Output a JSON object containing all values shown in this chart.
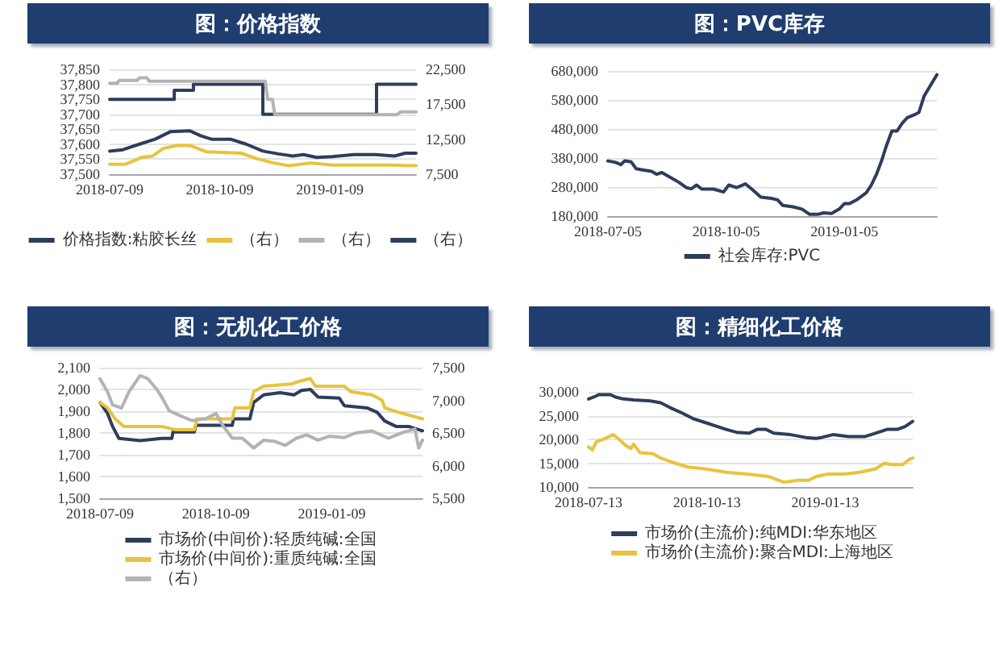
{
  "chart_data": [
    {
      "type": "line",
      "title": "图：价格指数",
      "series": [
        {
          "name": "价格指数:粘胶长丝",
          "type": "step",
          "color": "#2e3d5c",
          "x": [
            "2018-07-09",
            "2018-09-01",
            "2018-09-17",
            "2018-11-14",
            "2019-02-17",
            "2019-03-22"
          ],
          "values": [
            37750,
            37780,
            37800,
            37700,
            37800,
            37800
          ]
        },
        {
          "name": "（右）",
          "color": "#e8c33d",
          "axis": "y2",
          "x": [
            "2018-07-09",
            "2018-07-22",
            "2018-08-05",
            "2018-08-14",
            "2018-08-23",
            "2018-09-03",
            "2018-09-14",
            "2018-09-28",
            "2018-10-14",
            "2018-10-27",
            "2018-11-09",
            "2018-11-23",
            "2018-12-06",
            "2018-12-24",
            "2019-01-11",
            "2019-02-07",
            "2019-03-02",
            "2019-03-22"
          ],
          "values": [
            8900,
            8900,
            9900,
            10100,
            11200,
            11600,
            11600,
            10700,
            10600,
            10500,
            9700,
            9100,
            8700,
            9100,
            8800,
            8800,
            8800,
            8700
          ]
        },
        {
          "name": "（右）",
          "color": "#b3b3b3",
          "axis": "y2",
          "x": [
            "2018-07-09",
            "2018-07-15",
            "2018-07-17",
            "2018-08-01",
            "2018-08-03",
            "2018-08-09",
            "2018-08-11",
            "2018-11-16",
            "2018-11-18",
            "2018-11-22",
            "2018-11-24",
            "2019-03-06",
            "2019-03-09",
            "2019-03-22"
          ],
          "values": [
            20500,
            20500,
            20900,
            20900,
            21300,
            21300,
            20800,
            20800,
            18200,
            18200,
            16000,
            16000,
            16400,
            16400
          ]
        },
        {
          "name": "（右）",
          "color": "#2e3d5c",
          "axis": "y2",
          "x": [
            "2018-07-09",
            "2018-07-20",
            "2018-08-03",
            "2018-08-16",
            "2018-08-29",
            "2018-09-14",
            "2018-09-23",
            "2018-10-02",
            "2018-10-18",
            "2018-10-31",
            "2018-11-14",
            "2018-11-27",
            "2018-12-09",
            "2018-12-18",
            "2018-12-29",
            "2019-01-11",
            "2019-01-29",
            "2019-02-16",
            "2019-03-04",
            "2019-03-13",
            "2019-03-22"
          ],
          "values": [
            10800,
            11000,
            11800,
            12500,
            13600,
            13700,
            13000,
            12500,
            12500,
            11800,
            10800,
            10400,
            10100,
            10300,
            9900,
            10000,
            10300,
            10300,
            10100,
            10500,
            10500
          ]
        }
      ],
      "xlim": [
        "2018-07-09",
        "2019-03-22"
      ],
      "xticks": [
        "2018-07-09",
        "2018-10-09",
        "2019-01-09"
      ],
      "ylim": [
        37500,
        37850
      ],
      "yticks": [
        {
          "value": 37500,
          "label": "37,500"
        },
        {
          "value": 37550,
          "label": "37,550"
        },
        {
          "value": 37600,
          "label": "37,600"
        },
        {
          "value": 37650,
          "label": "37,650"
        },
        {
          "value": 37700,
          "label": "37,700"
        },
        {
          "value": 37750,
          "label": "37,750"
        },
        {
          "value": 37800,
          "label": "37,800"
        },
        {
          "value": 37850,
          "label": "37,850"
        }
      ],
      "y2lim": [
        7500,
        22500
      ],
      "y2ticks": [
        {
          "value": 7500,
          "label": "7,500"
        },
        {
          "value": 12500,
          "label": "12,500"
        },
        {
          "value": 17500,
          "label": "17,500"
        },
        {
          "value": 22500,
          "label": "22,500"
        }
      ],
      "grid": "y",
      "legend": "bottom"
    },
    {
      "type": "line",
      "title": "图：PVC库存",
      "series": [
        {
          "name": "社会库存:PVC",
          "color": "#2e3d5c",
          "x": [
            "2018-07-05",
            "2018-07-11",
            "2018-07-15",
            "2018-07-18",
            "2018-07-23",
            "2018-07-27",
            "2018-08-01",
            "2018-08-08",
            "2018-08-12",
            "2018-08-16",
            "2018-08-22",
            "2018-08-29",
            "2018-09-04",
            "2018-09-08",
            "2018-09-12",
            "2018-09-16",
            "2018-09-25",
            "2018-10-03",
            "2018-10-07",
            "2018-10-13",
            "2018-10-20",
            "2018-10-26",
            "2018-11-01",
            "2018-11-09",
            "2018-11-14",
            "2018-11-18",
            "2018-11-26",
            "2018-12-03",
            "2018-12-09",
            "2018-12-15",
            "2018-12-20",
            "2018-12-26",
            "2019-01-01",
            "2019-01-05",
            "2019-01-09",
            "2019-01-15",
            "2019-01-22",
            "2019-01-26",
            "2019-01-30",
            "2019-02-03",
            "2019-02-07",
            "2019-02-11",
            "2019-02-15",
            "2019-02-19",
            "2019-02-23",
            "2019-02-28",
            "2019-03-04",
            "2019-03-08",
            "2019-03-13",
            "2019-03-18"
          ],
          "values": [
            370000,
            365000,
            357000,
            370000,
            367000,
            343000,
            339000,
            334000,
            324000,
            330000,
            315000,
            297000,
            278000,
            274000,
            287000,
            273000,
            273000,
            263000,
            287000,
            278000,
            291000,
            269000,
            245000,
            241000,
            236000,
            217000,
            212000,
            204000,
            186000,
            186000,
            191000,
            189000,
            204000,
            223000,
            223000,
            237000,
            260000,
            287000,
            324000,
            371000,
            426000,
            473000,
            473000,
            500000,
            519000,
            528000,
            537000,
            593000,
            630000,
            667000
          ]
        }
      ],
      "xlim": [
        "2018-07-05",
        "2019-03-18"
      ],
      "xticks": [
        "2018-07-05",
        "2018-10-05",
        "2019-01-05"
      ],
      "ylim": [
        180000,
        680000
      ],
      "yticks": [
        {
          "value": 180000,
          "label": "180,000"
        },
        {
          "value": 280000,
          "label": "280,000"
        },
        {
          "value": 380000,
          "label": "380,000"
        },
        {
          "value": 480000,
          "label": "480,000"
        },
        {
          "value": 580000,
          "label": "580,000"
        },
        {
          "value": 680000,
          "label": "680,000"
        }
      ],
      "grid": "y",
      "legend": "bottom"
    },
    {
      "type": "line",
      "title": "图：无机化工价格",
      "series": [
        {
          "name": "市场价(中间价):轻质纯碱:全国",
          "color": "#2e3d5c",
          "x": [
            "2018-07-09",
            "2018-07-15",
            "2018-07-19",
            "2018-07-24",
            "2018-08-10",
            "2018-08-27",
            "2018-09-04",
            "2018-09-05",
            "2018-09-22",
            "2018-09-23",
            "2018-10-22",
            "2018-10-23",
            "2018-11-05",
            "2018-11-08",
            "2018-11-16",
            "2018-11-29",
            "2018-12-10",
            "2018-12-16",
            "2018-12-23",
            "2018-12-29",
            "2019-01-15",
            "2019-01-19",
            "2019-02-06",
            "2019-02-14",
            "2019-02-20",
            "2019-03-01",
            "2019-03-11",
            "2019-03-22"
          ],
          "values": [
            1940,
            1890,
            1830,
            1775,
            1765,
            1775,
            1775,
            1805,
            1805,
            1835,
            1835,
            1865,
            1865,
            1940,
            1975,
            1985,
            1975,
            1995,
            2000,
            1965,
            1960,
            1925,
            1915,
            1895,
            1855,
            1830,
            1830,
            1810
          ]
        },
        {
          "name": "市场价(中间价):重质纯碱:全国",
          "color": "#e8c33d",
          "x": [
            "2018-07-09",
            "2018-07-15",
            "2018-07-21",
            "2018-07-28",
            "2018-08-27",
            "2018-09-07",
            "2018-09-22",
            "2018-09-24",
            "2018-10-22",
            "2018-10-24",
            "2018-11-05",
            "2018-11-08",
            "2018-11-16",
            "2018-12-08",
            "2018-12-16",
            "2018-12-23",
            "2018-12-27",
            "2019-01-19",
            "2019-01-24",
            "2019-02-10",
            "2019-02-18",
            "2019-02-20",
            "2019-03-03",
            "2019-03-22"
          ],
          "values": [
            1940,
            1915,
            1865,
            1830,
            1830,
            1815,
            1815,
            1865,
            1865,
            1915,
            1915,
            1990,
            2015,
            2025,
            2040,
            2050,
            2015,
            2015,
            1990,
            1975,
            1950,
            1915,
            1895,
            1865
          ]
        },
        {
          "name": "（右）",
          "color": "#b3b3b3",
          "axis": "y2",
          "x": [
            "2018-07-09",
            "2018-07-15",
            "2018-07-19",
            "2018-07-26",
            "2018-08-01",
            "2018-08-10",
            "2018-08-16",
            "2018-08-23",
            "2018-08-27",
            "2018-09-02",
            "2018-09-11",
            "2018-09-20",
            "2018-10-01",
            "2018-10-09",
            "2018-10-15",
            "2018-10-22",
            "2018-10-30",
            "2018-11-08",
            "2018-11-16",
            "2018-11-25",
            "2018-12-03",
            "2018-12-12",
            "2018-12-20",
            "2018-12-29",
            "2019-01-07",
            "2019-01-19",
            "2019-01-28",
            "2019-02-10",
            "2019-02-23",
            "2019-03-07",
            "2019-03-16",
            "2019-03-19",
            "2019-03-22"
          ],
          "values": [
            7330,
            7130,
            6930,
            6880,
            7130,
            7380,
            7330,
            7170,
            7050,
            6840,
            6760,
            6690,
            6720,
            6800,
            6600,
            6420,
            6420,
            6270,
            6390,
            6370,
            6310,
            6420,
            6470,
            6390,
            6450,
            6430,
            6500,
            6530,
            6420,
            6510,
            6560,
            6270,
            6390
          ]
        }
      ],
      "xlim": [
        "2018-07-09",
        "2019-03-22"
      ],
      "xticks": [
        "2018-07-09",
        "2018-10-09",
        "2019-01-09"
      ],
      "ylim": [
        1500,
        2100
      ],
      "yticks": [
        {
          "value": 1500,
          "label": "1,500"
        },
        {
          "value": 1600,
          "label": "1,600"
        },
        {
          "value": 1700,
          "label": "1,700"
        },
        {
          "value": 1800,
          "label": "1,800"
        },
        {
          "value": 1900,
          "label": "1,900"
        },
        {
          "value": 2000,
          "label": "2,000"
        },
        {
          "value": 2100,
          "label": "2,100"
        }
      ],
      "y2lim": [
        5500,
        7500
      ],
      "y2ticks": [
        {
          "value": 5500,
          "label": "5,500"
        },
        {
          "value": 6000,
          "label": "6,000"
        },
        {
          "value": 6500,
          "label": "6,500"
        },
        {
          "value": 7000,
          "label": "7,000"
        },
        {
          "value": 7500,
          "label": "7,500"
        }
      ],
      "grid": "y",
      "legend": "bottom"
    },
    {
      "type": "line",
      "title": "图：精细化工价格",
      "series": [
        {
          "name": "市场价(主流价):纯MDI:华东地区",
          "color": "#2e3d5c",
          "x": [
            "2018-07-13",
            "2018-07-17",
            "2018-07-21",
            "2018-07-30",
            "2018-08-03",
            "2018-08-09",
            "2018-08-17",
            "2018-08-30",
            "2018-09-07",
            "2018-09-15",
            "2018-09-24",
            "2018-10-02",
            "2018-10-11",
            "2018-10-19",
            "2018-10-28",
            "2018-11-05",
            "2018-11-15",
            "2018-11-21",
            "2018-11-28",
            "2018-12-04",
            "2018-12-17",
            "2018-12-29",
            "2019-01-06",
            "2019-01-10",
            "2019-01-19",
            "2019-01-31",
            "2019-02-13",
            "2019-02-21",
            "2019-03-02",
            "2019-03-10",
            "2019-03-16",
            "2019-03-22"
          ],
          "values": [
            28500,
            28900,
            29400,
            29400,
            28900,
            28500,
            28300,
            28100,
            27700,
            26600,
            25500,
            24400,
            23600,
            22900,
            22100,
            21500,
            21300,
            22100,
            22100,
            21300,
            21000,
            20400,
            20200,
            20400,
            21000,
            20600,
            20600,
            21300,
            22100,
            22100,
            22700,
            23800
          ]
        },
        {
          "name": "市场价(主流价):聚合MDI:上海地区",
          "color": "#e8c33d",
          "x": [
            "2018-07-13",
            "2018-07-16",
            "2018-07-19",
            "2018-07-26",
            "2018-08-01",
            "2018-08-05",
            "2018-08-11",
            "2018-08-15",
            "2018-08-17",
            "2018-08-22",
            "2018-09-01",
            "2018-09-07",
            "2018-09-15",
            "2018-09-28",
            "2018-10-11",
            "2018-10-28",
            "2018-11-13",
            "2018-11-30",
            "2018-12-12",
            "2018-12-23",
            "2018-12-31",
            "2019-01-06",
            "2019-01-15",
            "2019-01-27",
            "2019-02-09",
            "2019-02-21",
            "2019-02-28",
            "2019-03-06",
            "2019-03-14",
            "2019-03-20",
            "2019-03-22"
          ],
          "values": [
            18400,
            17800,
            19500,
            20200,
            21000,
            20200,
            18700,
            18100,
            19000,
            17200,
            17000,
            16100,
            15300,
            14200,
            13800,
            13100,
            12700,
            12200,
            11000,
            11400,
            11400,
            12200,
            12700,
            12700,
            13100,
            13800,
            15000,
            14700,
            14700,
            15900,
            16100
          ]
        }
      ],
      "xlim": [
        "2018-07-13",
        "2019-03-22"
      ],
      "xticks": [
        "2018-07-13",
        "2018-10-13",
        "2019-01-13"
      ],
      "ylim": [
        10000,
        30000
      ],
      "yticks": [
        {
          "value": 10000,
          "label": "10,000"
        },
        {
          "value": 15000,
          "label": "15,000"
        },
        {
          "value": 20000,
          "label": "20,000"
        },
        {
          "value": 25000,
          "label": "25,000"
        },
        {
          "value": 30000,
          "label": "30,000"
        }
      ],
      "grid": "y",
      "legend": "bottom"
    }
  ]
}
